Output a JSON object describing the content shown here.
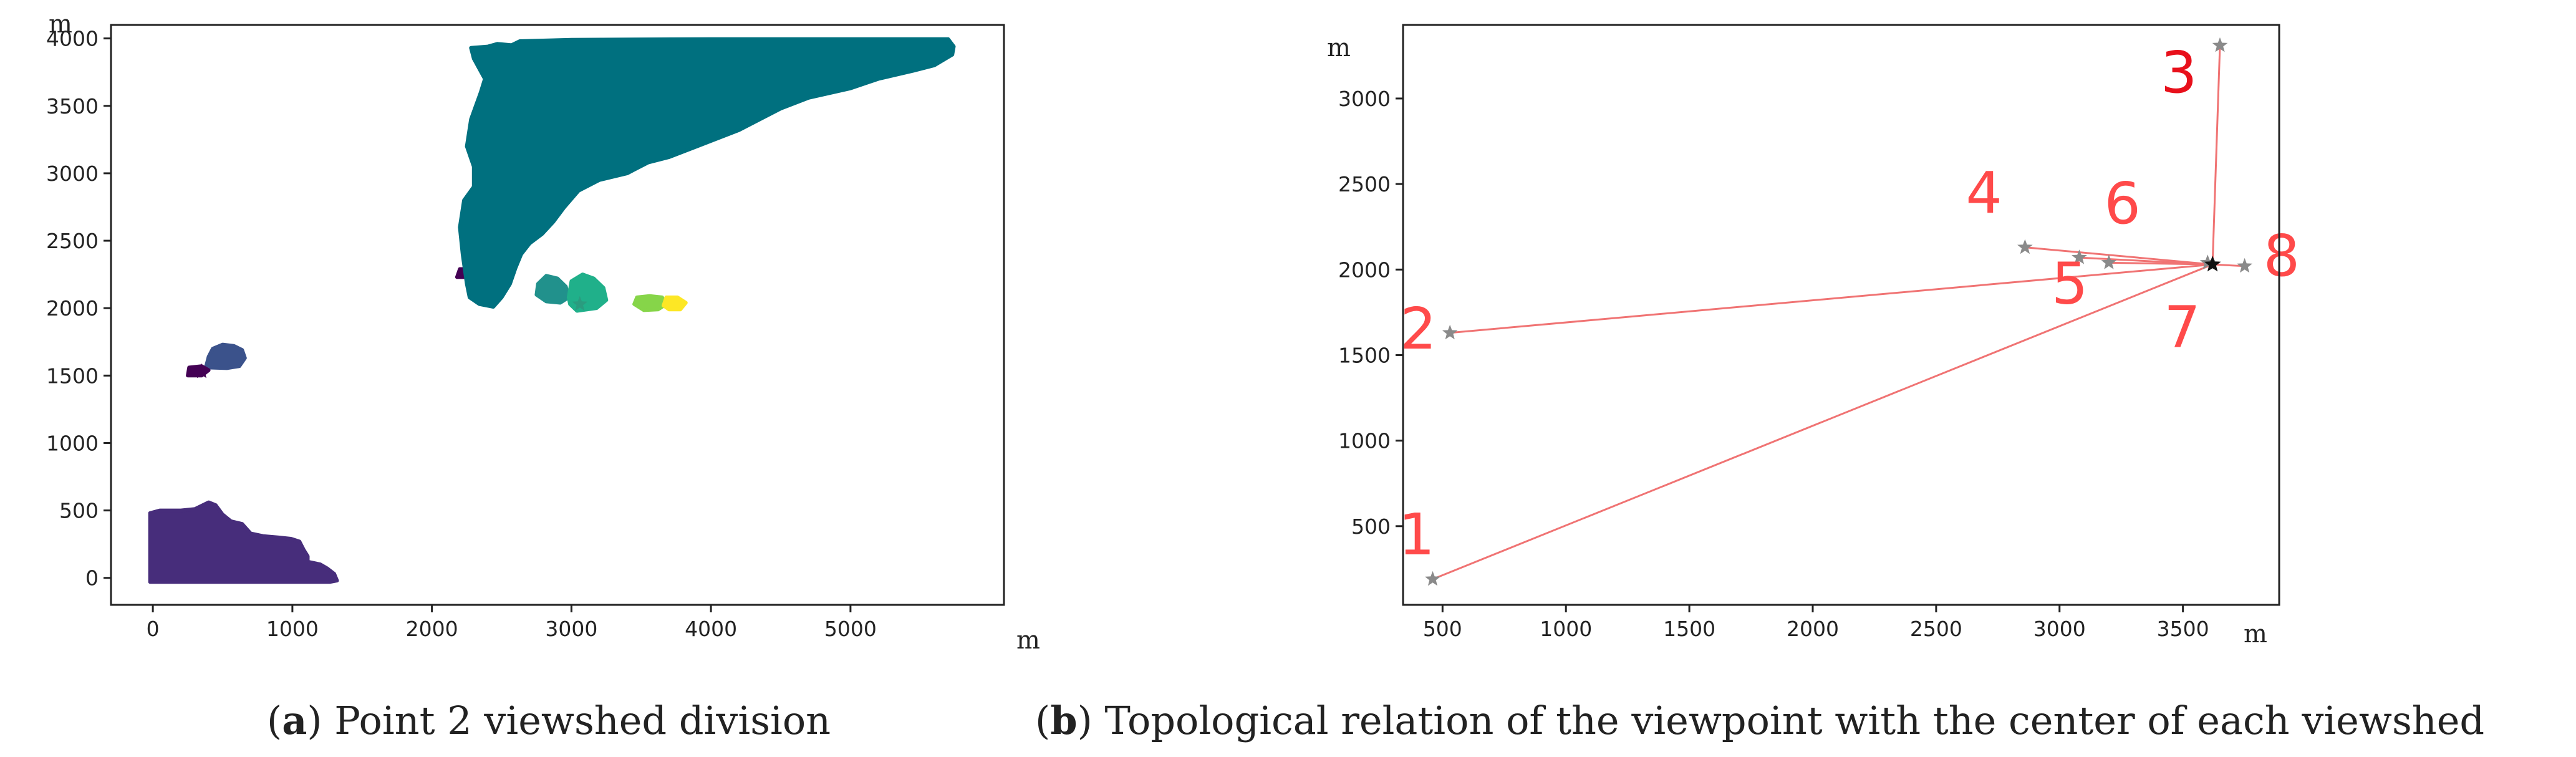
{
  "figure": {
    "panel_a": {
      "caption_letter": "a",
      "caption_text": " Point 2 viewshed division",
      "axis_unit_x": "m",
      "axis_unit_y": "m"
    },
    "panel_b": {
      "caption_letter": "b",
      "caption_text": " Topological relation of the viewpoint with the center of each viewshed",
      "axis_unit_x": "m",
      "axis_unit_y": "m"
    }
  },
  "chart_data": [
    {
      "type": "scatter",
      "title": "",
      "xlim": [
        -300,
        6100
      ],
      "ylim": [
        -200,
        4100
      ],
      "x_ticks": [
        0,
        1000,
        2000,
        3000,
        4000,
        5000
      ],
      "y_ticks": [
        0,
        500,
        1000,
        1500,
        2000,
        2500,
        3000,
        3500,
        4000
      ],
      "grid": false,
      "legend": "none",
      "regions": [
        {
          "name": "",
          "color": "#472d7b",
          "centroid": [
            450,
            180
          ],
          "outline": [
            [
              -20,
              480
            ],
            [
              50,
              500
            ],
            [
              200,
              500
            ],
            [
              300,
              510
            ],
            [
              400,
              560
            ],
            [
              450,
              540
            ],
            [
              500,
              470
            ],
            [
              560,
              420
            ],
            [
              640,
              400
            ],
            [
              700,
              330
            ],
            [
              790,
              310
            ],
            [
              900,
              300
            ],
            [
              990,
              290
            ],
            [
              1050,
              270
            ],
            [
              1080,
              210
            ],
            [
              1110,
              160
            ],
            [
              1110,
              120
            ],
            [
              1200,
              100
            ],
            [
              1250,
              70
            ],
            [
              1300,
              30
            ],
            [
              1320,
              -20
            ],
            [
              1270,
              -30
            ],
            [
              1000,
              -30
            ],
            [
              500,
              -30
            ],
            [
              -20,
              -30
            ]
          ]
        },
        {
          "name": "",
          "color": "#3b528b",
          "centroid": [
            520,
            1620
          ],
          "outline": [
            [
              380,
              1560
            ],
            [
              400,
              1640
            ],
            [
              430,
              1700
            ],
            [
              500,
              1730
            ],
            [
              580,
              1720
            ],
            [
              640,
              1690
            ],
            [
              660,
              1630
            ],
            [
              620,
              1570
            ],
            [
              530,
              1555
            ]
          ]
        },
        {
          "name": "",
          "color": "#440154",
          "centroid": [
            320,
            1530
          ],
          "outline": [
            [
              250,
              1500
            ],
            [
              260,
              1560
            ],
            [
              350,
              1570
            ],
            [
              400,
              1540
            ],
            [
              350,
              1500
            ]
          ]
        },
        {
          "name": "",
          "color": "#440154",
          "centroid": [
            2230,
            2260
          ],
          "outline": [
            [
              2180,
              2230
            ],
            [
              2200,
              2290
            ],
            [
              2260,
              2290
            ],
            [
              2280,
              2230
            ]
          ]
        },
        {
          "name": "",
          "color": "#00707f",
          "centroid": [
            3600,
            3300
          ],
          "outline": [
            [
              2280,
              3930
            ],
            [
              2400,
              3940
            ],
            [
              2470,
              3960
            ],
            [
              2570,
              3950
            ],
            [
              2630,
              3980
            ],
            [
              3000,
              3990
            ],
            [
              4000,
              3995
            ],
            [
              5000,
              3995
            ],
            [
              5700,
              3995
            ],
            [
              5740,
              3940
            ],
            [
              5730,
              3880
            ],
            [
              5600,
              3800
            ],
            [
              5450,
              3760
            ],
            [
              5200,
              3700
            ],
            [
              5000,
              3630
            ],
            [
              4700,
              3560
            ],
            [
              4500,
              3480
            ],
            [
              4200,
              3320
            ],
            [
              3900,
              3200
            ],
            [
              3700,
              3120
            ],
            [
              3550,
              3080
            ],
            [
              3400,
              3000
            ],
            [
              3200,
              2950
            ],
            [
              3050,
              2870
            ],
            [
              2950,
              2750
            ],
            [
              2870,
              2640
            ],
            [
              2790,
              2550
            ],
            [
              2700,
              2480
            ],
            [
              2640,
              2400
            ],
            [
              2600,
              2300
            ],
            [
              2560,
              2180
            ],
            [
              2500,
              2080
            ],
            [
              2440,
              2010
            ],
            [
              2340,
              2030
            ],
            [
              2270,
              2080
            ],
            [
              2250,
              2180
            ],
            [
              2220,
              2400
            ],
            [
              2200,
              2600
            ],
            [
              2230,
              2800
            ],
            [
              2300,
              2900
            ],
            [
              2300,
              3050
            ],
            [
              2250,
              3200
            ],
            [
              2280,
              3400
            ],
            [
              2350,
              3600
            ],
            [
              2380,
              3700
            ],
            [
              2300,
              3850
            ]
          ]
        },
        {
          "name": "",
          "color": "#21918c",
          "centroid": [
            2900,
            2140
          ],
          "outline": [
            [
              2750,
              2100
            ],
            [
              2760,
              2180
            ],
            [
              2820,
              2240
            ],
            [
              2900,
              2220
            ],
            [
              2960,
              2160
            ],
            [
              2980,
              2080
            ],
            [
              2920,
              2040
            ],
            [
              2820,
              2050
            ]
          ]
        },
        {
          "name": "",
          "color": "#20b08a",
          "centroid": [
            3120,
            2110
          ],
          "outline": [
            [
              2980,
              2080
            ],
            [
              3000,
              2200
            ],
            [
              3080,
              2250
            ],
            [
              3160,
              2220
            ],
            [
              3230,
              2150
            ],
            [
              3250,
              2060
            ],
            [
              3180,
              2000
            ],
            [
              3040,
              1980
            ],
            [
              2990,
              2030
            ]
          ]
        },
        {
          "name": "",
          "color": "#86d549",
          "centroid": [
            3560,
            2040
          ],
          "outline": [
            [
              3450,
              2030
            ],
            [
              3470,
              2080
            ],
            [
              3560,
              2090
            ],
            [
              3650,
              2080
            ],
            [
              3680,
              2030
            ],
            [
              3620,
              1990
            ],
            [
              3520,
              1985
            ]
          ]
        },
        {
          "name": "",
          "color": "#fde725",
          "centroid": [
            3740,
            2030
          ],
          "outline": [
            [
              3660,
              2020
            ],
            [
              3680,
              2080
            ],
            [
              3760,
              2080
            ],
            [
              3820,
              2040
            ],
            [
              3780,
              1990
            ],
            [
              3700,
              1990
            ]
          ]
        }
      ],
      "markers": [
        {
          "x": 350,
          "y": 1530,
          "color": "#440154"
        },
        {
          "x": 3060,
          "y": 2030,
          "color": "#2a9c7f"
        }
      ],
      "xlabel": "m",
      "ylabel": "m"
    },
    {
      "type": "scatter",
      "title": "",
      "xlim": [
        340,
        3890
      ],
      "ylim": [
        40,
        3430
      ],
      "x_ticks": [
        500,
        1000,
        1500,
        2000,
        2500,
        3000,
        3500
      ],
      "y_ticks": [
        500,
        1000,
        1500,
        2000,
        2500,
        3000
      ],
      "grid": false,
      "legend": "none",
      "viewpoint": {
        "x": 3620,
        "y": 2030
      },
      "points": [
        {
          "label": "1",
          "x": 460,
          "y": 190
        },
        {
          "label": "2",
          "x": 530,
          "y": 1630
        },
        {
          "label": "3",
          "x": 3650,
          "y": 3310
        },
        {
          "label": "4",
          "x": 2860,
          "y": 2130
        },
        {
          "label": "5",
          "x": 3200,
          "y": 2040
        },
        {
          "label": "6",
          "x": 3080,
          "y": 2070
        },
        {
          "label": "7",
          "x": 3600,
          "y": 2040
        },
        {
          "label": "8",
          "x": 3750,
          "y": 2020
        }
      ],
      "line_color": "#f07373",
      "label_color_primary": "#ff4a4a",
      "label_color_red": "#e8101b",
      "xlabel": "m",
      "ylabel": "m"
    }
  ]
}
